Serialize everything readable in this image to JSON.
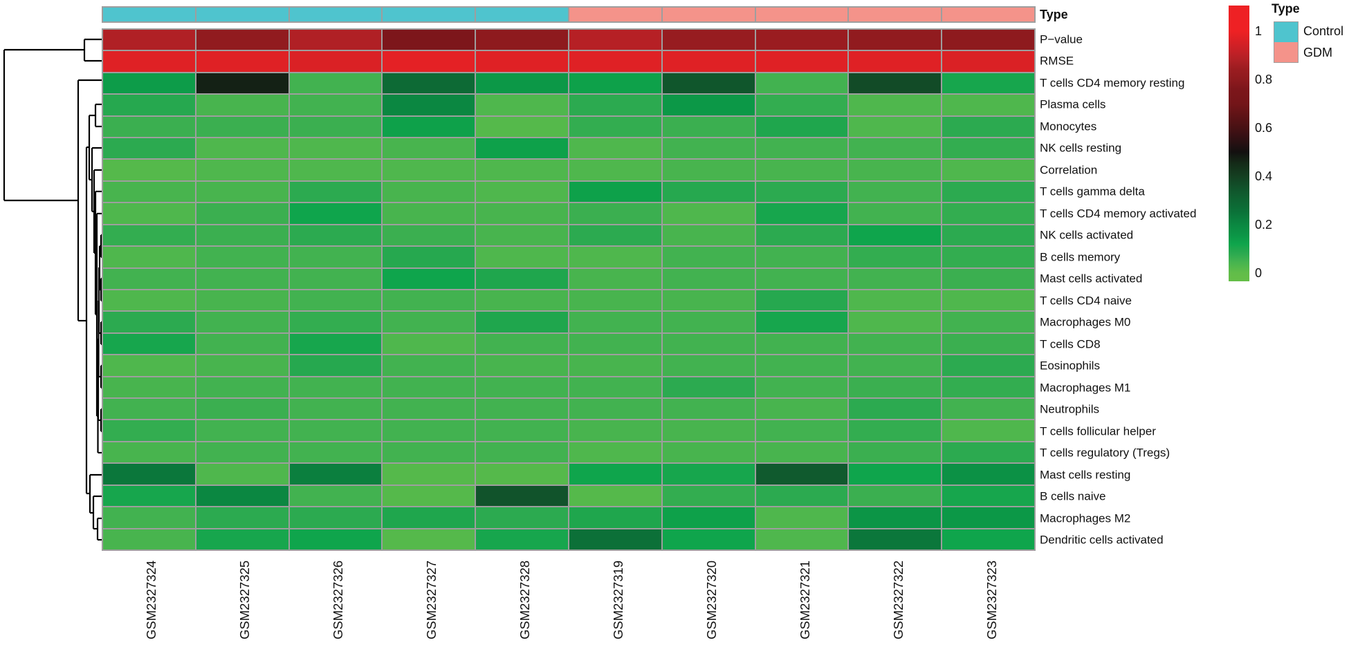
{
  "ui": {
    "annotation_title": "Type",
    "legend": {
      "title": "Type",
      "items": [
        {
          "label": "Control",
          "color": "#4FC4CE"
        },
        {
          "label": "GDM",
          "color": "#F4938A"
        }
      ]
    },
    "colorbar": {
      "ticks": [
        {
          "label": "1",
          "v": 1.0
        },
        {
          "label": "0.8",
          "v": 0.8
        },
        {
          "label": "0.6",
          "v": 0.6
        },
        {
          "label": "0.4",
          "v": 0.4
        },
        {
          "label": "0.2",
          "v": 0.2
        },
        {
          "label": "0",
          "v": 0.0
        }
      ]
    }
  },
  "chart_data": {
    "type": "heatmap",
    "legend_position": "right",
    "columns": [
      "GSM2327324",
      "GSM2327325",
      "GSM2327326",
      "GSM2327327",
      "GSM2327328",
      "GSM2327319",
      "GSM2327320",
      "GSM2327321",
      "GSM2327322",
      "GSM2327323"
    ],
    "column_annotation": {
      "name": "Type",
      "values": [
        "Control",
        "Control",
        "Control",
        "Control",
        "Control",
        "GDM",
        "GDM",
        "GDM",
        "GDM",
        "GDM"
      ],
      "colors": {
        "Control": "#4FC4CE",
        "GDM": "#F4938A"
      }
    },
    "rows": [
      "P−value",
      "RMSE",
      "T cells CD4 memory resting",
      "Plasma cells",
      "Monocytes",
      "NK cells resting",
      "Correlation",
      "T cells gamma delta",
      "T cells CD4 memory activated",
      "NK cells activated",
      "B cells memory",
      "Mast cells activated",
      "T cells CD4 naive",
      "Macrophages M0",
      "T cells CD8",
      "Eosinophils",
      "Macrophages M1",
      "Neutrophils",
      "T cells follicular helper",
      "T cells regulatory (Tregs)",
      "Mast cells resting",
      "B cells naive",
      "Macrophages M2",
      "Dendritic cells activated"
    ],
    "values": [
      [
        0.88,
        0.81,
        0.88,
        0.76,
        0.8,
        0.89,
        0.83,
        0.84,
        0.81,
        0.8
      ],
      [
        0.97,
        0.97,
        0.96,
        0.98,
        0.97,
        0.97,
        0.97,
        0.97,
        0.97,
        0.96
      ],
      [
        0.14,
        0.47,
        0.05,
        0.28,
        0.15,
        0.13,
        0.34,
        0.05,
        0.37,
        0.11
      ],
      [
        0.09,
        0.04,
        0.05,
        0.2,
        0.03,
        0.08,
        0.15,
        0.07,
        0.03,
        0.03
      ],
      [
        0.06,
        0.06,
        0.06,
        0.13,
        0.02,
        0.07,
        0.06,
        0.1,
        0.03,
        0.08
      ],
      [
        0.08,
        0.03,
        0.03,
        0.04,
        0.13,
        0.03,
        0.05,
        0.05,
        0.05,
        0.07
      ],
      [
        0.02,
        0.03,
        0.03,
        0.03,
        0.03,
        0.03,
        0.04,
        0.04,
        0.04,
        0.03
      ],
      [
        0.04,
        0.04,
        0.08,
        0.04,
        0.03,
        0.13,
        0.09,
        0.08,
        0.05,
        0.08
      ],
      [
        0.03,
        0.06,
        0.12,
        0.04,
        0.04,
        0.06,
        0.03,
        0.11,
        0.05,
        0.07
      ],
      [
        0.07,
        0.06,
        0.08,
        0.06,
        0.04,
        0.08,
        0.04,
        0.08,
        0.12,
        0.08
      ],
      [
        0.03,
        0.05,
        0.05,
        0.09,
        0.03,
        0.03,
        0.05,
        0.05,
        0.07,
        0.07
      ],
      [
        0.05,
        0.05,
        0.05,
        0.12,
        0.1,
        0.04,
        0.05,
        0.05,
        0.05,
        0.06
      ],
      [
        0.03,
        0.04,
        0.05,
        0.05,
        0.04,
        0.04,
        0.04,
        0.09,
        0.03,
        0.03
      ],
      [
        0.08,
        0.05,
        0.07,
        0.05,
        0.1,
        0.05,
        0.05,
        0.11,
        0.03,
        0.05
      ],
      [
        0.11,
        0.05,
        0.11,
        0.03,
        0.05,
        0.05,
        0.05,
        0.05,
        0.05,
        0.06
      ],
      [
        0.03,
        0.04,
        0.09,
        0.05,
        0.04,
        0.04,
        0.05,
        0.05,
        0.05,
        0.08
      ],
      [
        0.04,
        0.05,
        0.05,
        0.05,
        0.05,
        0.05,
        0.08,
        0.05,
        0.06,
        0.07
      ],
      [
        0.05,
        0.06,
        0.05,
        0.05,
        0.05,
        0.05,
        0.05,
        0.04,
        0.08,
        0.05
      ],
      [
        0.07,
        0.05,
        0.05,
        0.05,
        0.05,
        0.04,
        0.04,
        0.05,
        0.07,
        0.03
      ],
      [
        0.04,
        0.05,
        0.05,
        0.05,
        0.05,
        0.03,
        0.04,
        0.04,
        0.06,
        0.08
      ],
      [
        0.24,
        0.03,
        0.22,
        0.02,
        0.02,
        0.12,
        0.11,
        0.33,
        0.12,
        0.17
      ],
      [
        0.11,
        0.2,
        0.05,
        0.02,
        0.35,
        0.02,
        0.07,
        0.08,
        0.06,
        0.11
      ],
      [
        0.05,
        0.08,
        0.08,
        0.1,
        0.08,
        0.1,
        0.13,
        0.03,
        0.16,
        0.15
      ],
      [
        0.04,
        0.11,
        0.12,
        0.02,
        0.11,
        0.26,
        0.12,
        0.03,
        0.24,
        0.12
      ]
    ],
    "value_range": [
      0,
      1
    ],
    "grid_color": "#9E9E9E",
    "colormap_anchors": [
      {
        "v": 0.0,
        "c": "#62BD49"
      },
      {
        "v": 0.02,
        "c": "#55B94B"
      },
      {
        "v": 0.05,
        "c": "#42B250"
      },
      {
        "v": 0.08,
        "c": "#2CAA50"
      },
      {
        "v": 0.1,
        "c": "#1FA64D"
      },
      {
        "v": 0.12,
        "c": "#0FA54C"
      },
      {
        "v": 0.15,
        "c": "#0C9847"
      },
      {
        "v": 0.2,
        "c": "#0B8741"
      },
      {
        "v": 0.25,
        "c": "#0B7339"
      },
      {
        "v": 0.3,
        "c": "#0E6432"
      },
      {
        "v": 0.35,
        "c": "#11532B"
      },
      {
        "v": 0.4,
        "c": "#143F21"
      },
      {
        "v": 0.45,
        "c": "#142C18"
      },
      {
        "v": 0.5,
        "c": "#131010"
      },
      {
        "v": 0.55,
        "c": "#2E1013"
      },
      {
        "v": 0.6,
        "c": "#471114"
      },
      {
        "v": 0.65,
        "c": "#5E1316"
      },
      {
        "v": 0.7,
        "c": "#741519"
      },
      {
        "v": 0.76,
        "c": "#7D161B"
      },
      {
        "v": 0.8,
        "c": "#8E1A1E"
      },
      {
        "v": 0.84,
        "c": "#9A1C20"
      },
      {
        "v": 0.88,
        "c": "#B02025"
      },
      {
        "v": 0.92,
        "c": "#C62026"
      },
      {
        "v": 1.0,
        "c": "#EE2124"
      }
    ],
    "row_dendrogram_segments": [
      [
        122,
        57,
        122,
        88
      ],
      [
        122,
        57,
        147,
        57
      ],
      [
        122,
        88,
        147,
        88
      ],
      [
        6,
        72,
        122,
        72
      ],
      [
        6,
        72,
        6,
        290
      ],
      [
        6,
        290,
        113,
        290
      ],
      [
        113,
        116,
        113,
        464
      ],
      [
        113,
        116,
        147,
        116
      ],
      [
        113,
        464,
        125,
        464
      ],
      [
        125,
        213,
        125,
        714
      ],
      [
        125,
        213,
        129,
        213
      ],
      [
        125,
        714,
        130,
        714
      ],
      [
        129,
        167,
        129,
        260
      ],
      [
        129,
        167,
        138,
        167
      ],
      [
        129,
        260,
        133,
        260
      ],
      [
        138,
        151,
        138,
        183
      ],
      [
        138,
        151,
        147,
        151
      ],
      [
        138,
        183,
        147,
        183
      ],
      [
        133,
        214,
        133,
        306
      ],
      [
        133,
        214,
        147,
        214
      ],
      [
        133,
        306,
        136,
        306
      ],
      [
        136,
        246,
        136,
        366
      ],
      [
        136,
        246,
        147,
        246
      ],
      [
        136,
        366,
        138,
        366
      ],
      [
        138,
        277,
        138,
        455
      ],
      [
        138,
        277,
        147,
        277
      ],
      [
        138,
        455,
        140,
        455
      ],
      [
        140,
        309,
        140,
        602
      ],
      [
        140,
        309,
        147,
        309
      ],
      [
        140,
        602,
        141.5,
        602
      ],
      [
        141.5,
        549,
        141.5,
        655
      ],
      [
        141.5,
        655,
        147,
        655
      ],
      [
        141.5,
        549,
        142,
        549
      ],
      [
        142,
        490,
        142,
        608
      ],
      [
        142,
        608,
        146,
        608
      ],
      [
        142,
        490,
        142.5,
        490
      ],
      [
        142.5,
        435,
        142.5,
        545
      ],
      [
        142.5,
        545,
        146,
        545
      ],
      [
        142.5,
        435,
        143,
        435
      ],
      [
        143,
        387,
        143,
        482
      ],
      [
        143,
        482,
        146,
        482
      ],
      [
        143,
        387,
        144,
        387
      ],
      [
        144,
        356,
        144,
        419
      ],
      [
        144,
        356,
        146,
        356
      ],
      [
        144,
        419,
        146,
        419
      ],
      [
        146,
        340,
        146,
        372
      ],
      [
        146,
        340,
        147,
        340
      ],
      [
        146,
        372,
        147,
        372
      ],
      [
        146,
        403,
        146,
        435
      ],
      [
        146,
        403,
        147,
        403
      ],
      [
        146,
        435,
        147,
        435
      ],
      [
        146,
        466,
        146,
        498
      ],
      [
        146,
        466,
        147,
        466
      ],
      [
        146,
        498,
        147,
        498
      ],
      [
        146,
        529,
        146,
        561
      ],
      [
        146,
        529,
        147,
        529
      ],
      [
        146,
        561,
        147,
        561
      ],
      [
        146,
        592,
        146,
        624
      ],
      [
        146,
        592,
        147,
        592
      ],
      [
        146,
        624,
        147,
        624
      ],
      [
        130,
        687,
        130,
        742
      ],
      [
        130,
        687,
        147,
        687
      ],
      [
        130,
        742,
        135,
        742
      ],
      [
        135,
        718,
        135,
        765
      ],
      [
        135,
        718,
        147,
        718
      ],
      [
        135,
        765,
        141,
        765
      ],
      [
        141,
        750,
        141,
        781
      ],
      [
        141,
        750,
        147,
        750
      ],
      [
        141,
        781,
        147,
        781
      ]
    ]
  }
}
